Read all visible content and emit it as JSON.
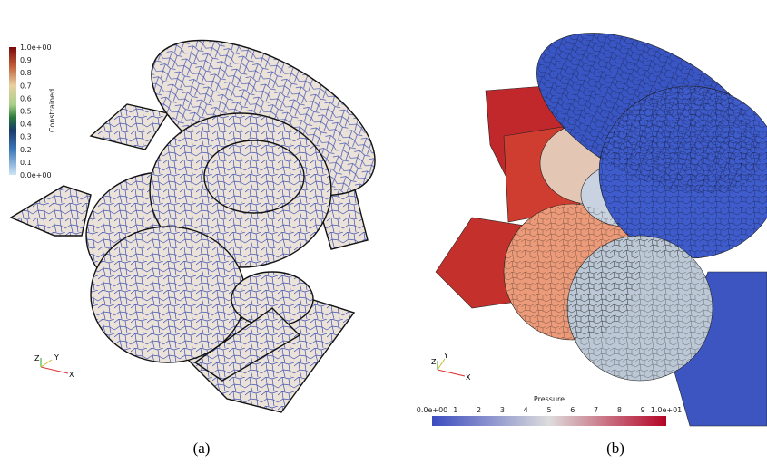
{
  "panel_a": {
    "colorbar": {
      "title": "Constrained",
      "labels": [
        "1.0e+00",
        "0.9",
        "0.8",
        "0.7",
        "0.6",
        "0.5",
        "0.4",
        "0.3",
        "0.2",
        "0.1",
        "0.0e+00"
      ]
    },
    "axes": {
      "x": "X",
      "y": "Y",
      "z": "Z"
    },
    "caption": "(a)"
  },
  "panel_b": {
    "colorbar": {
      "title": "Pressure",
      "labels": [
        "0.0e+00",
        "1",
        "2",
        "3",
        "4",
        "5",
        "6",
        "7",
        "8",
        "9",
        "1.0e+01"
      ]
    },
    "axes": {
      "x": "X",
      "y": "Y",
      "z": "Z"
    },
    "caption": "(b)"
  }
}
